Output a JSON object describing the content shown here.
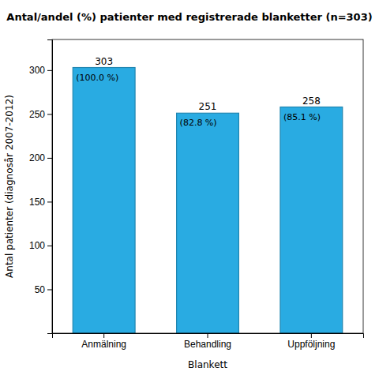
{
  "chart_data": {
    "type": "bar",
    "title": "Antal/andel (%) patienter med registrerade blanketter (n=303)",
    "categories": [
      "Anmälning",
      "Behandling",
      "Uppföljning"
    ],
    "values": [
      303,
      251,
      258
    ],
    "percentage_labels": [
      "(100.0 %)",
      "(82.8 %)",
      "(85.1 %)"
    ],
    "color": "#29ABE2",
    "xlabel": "Blankett",
    "ylabel": "Antal patienter (diagnosår 2007-2012)",
    "ylim": [
      0,
      335
    ],
    "yticks": [
      50,
      100,
      150,
      200,
      250,
      300
    ],
    "grid": false,
    "data_labels": true
  }
}
